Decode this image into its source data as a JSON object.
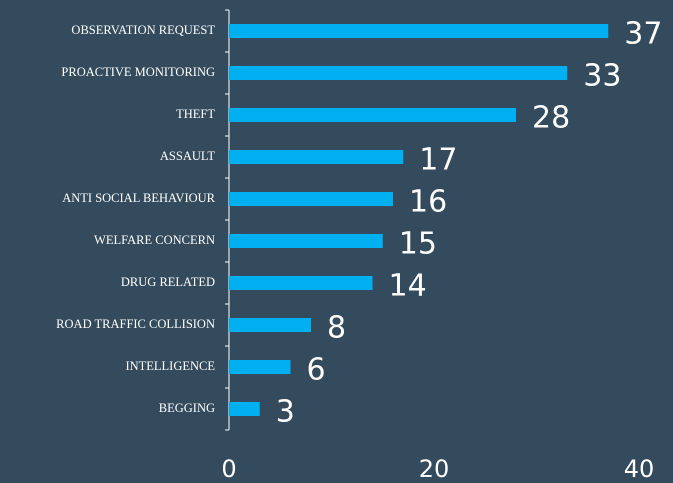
{
  "chart_data": {
    "type": "bar",
    "orientation": "horizontal",
    "categories": [
      "OBSERVATION REQUEST",
      "PROACTIVE MONITORING",
      "THEFT",
      "ASSAULT",
      "ANTI SOCIAL BEHAVIOUR",
      "WELFARE CONCERN",
      "DRUG RELATED",
      "ROAD TRAFFIC COLLISION",
      "INTELLIGENCE",
      "BEGGING"
    ],
    "values": [
      37,
      33,
      28,
      17,
      16,
      15,
      14,
      8,
      6,
      3
    ],
    "color": "#00b0f0",
    "xlim": [
      0,
      40
    ],
    "xticks": [
      0,
      20,
      40
    ],
    "grid": false
  }
}
